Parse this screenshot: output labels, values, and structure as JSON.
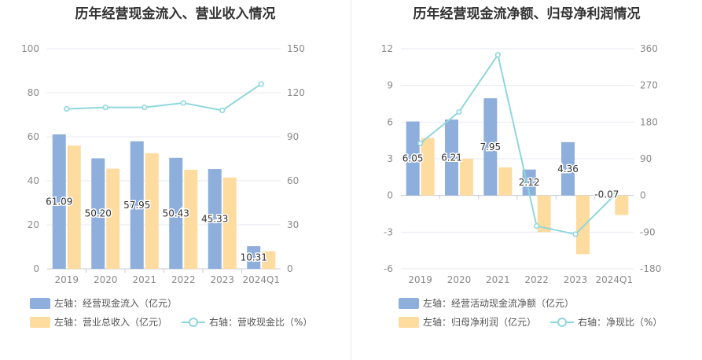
{
  "chart_data": [
    {
      "type": "bar",
      "title": "历年经营现金流入、营业收入情况",
      "categories": [
        "2019",
        "2020",
        "2021",
        "2022",
        "2023",
        "2024Q1"
      ],
      "left_axis": {
        "min": 0,
        "max": 100,
        "ticks": [
          0,
          20,
          40,
          60,
          80,
          100
        ]
      },
      "right_axis": {
        "min": 0,
        "max": 150,
        "ticks": [
          0,
          30,
          60,
          90,
          120,
          150
        ]
      },
      "series": [
        {
          "name": "左轴：经营现金流入（亿元）",
          "kind": "bar",
          "axis": "left",
          "color": "#8eaedc",
          "values": [
            61.09,
            50.2,
            57.95,
            50.43,
            45.33,
            10.31
          ],
          "labels": [
            "61.09",
            "50.20",
            "57.95",
            "50.43",
            "45.33",
            "10.31"
          ]
        },
        {
          "name": "左轴：营业总收入（亿元）",
          "kind": "bar",
          "axis": "left",
          "color": "#fedb9e",
          "values": [
            56,
            45.5,
            52.5,
            45,
            41.5,
            8
          ]
        },
        {
          "name": "右轴：营收现金比（%）",
          "kind": "line",
          "axis": "right",
          "color": "#8fd7dc",
          "values": [
            109,
            110,
            110,
            113,
            108,
            126
          ]
        }
      ],
      "grid": true,
      "legend": "bottom"
    },
    {
      "type": "bar",
      "title": "历年经营现金流净额、归母净利润情况",
      "categories": [
        "2019",
        "2020",
        "2021",
        "2022",
        "2023",
        "2024Q1"
      ],
      "left_axis": {
        "min": -6,
        "max": 12,
        "ticks": [
          -6,
          -3,
          0,
          3,
          6,
          9,
          12
        ]
      },
      "right_axis": {
        "min": -180,
        "max": 360,
        "ticks": [
          -180,
          -90,
          0,
          90,
          180,
          270,
          360
        ]
      },
      "series": [
        {
          "name": "左轴：经营活动现金流净额（亿元）",
          "kind": "bar",
          "axis": "left",
          "color": "#8eaedc",
          "values": [
            6.05,
            6.21,
            7.95,
            2.12,
            4.36,
            -0.07
          ],
          "labels": [
            "6.05",
            "6.21",
            "7.95",
            "2.12",
            "4.36",
            "-0.07"
          ]
        },
        {
          "name": "左轴：归母净利润（亿元）",
          "kind": "bar",
          "axis": "left",
          "color": "#fedb9e",
          "values": [
            4.7,
            3.0,
            2.3,
            -3.0,
            -4.8,
            -1.6
          ]
        },
        {
          "name": "右轴：净现比（%）",
          "kind": "line",
          "axis": "right",
          "color": "#8fd7dc",
          "values": [
            128,
            205,
            345,
            -75,
            -95,
            0
          ]
        }
      ],
      "grid": true,
      "legend": "bottom"
    }
  ]
}
